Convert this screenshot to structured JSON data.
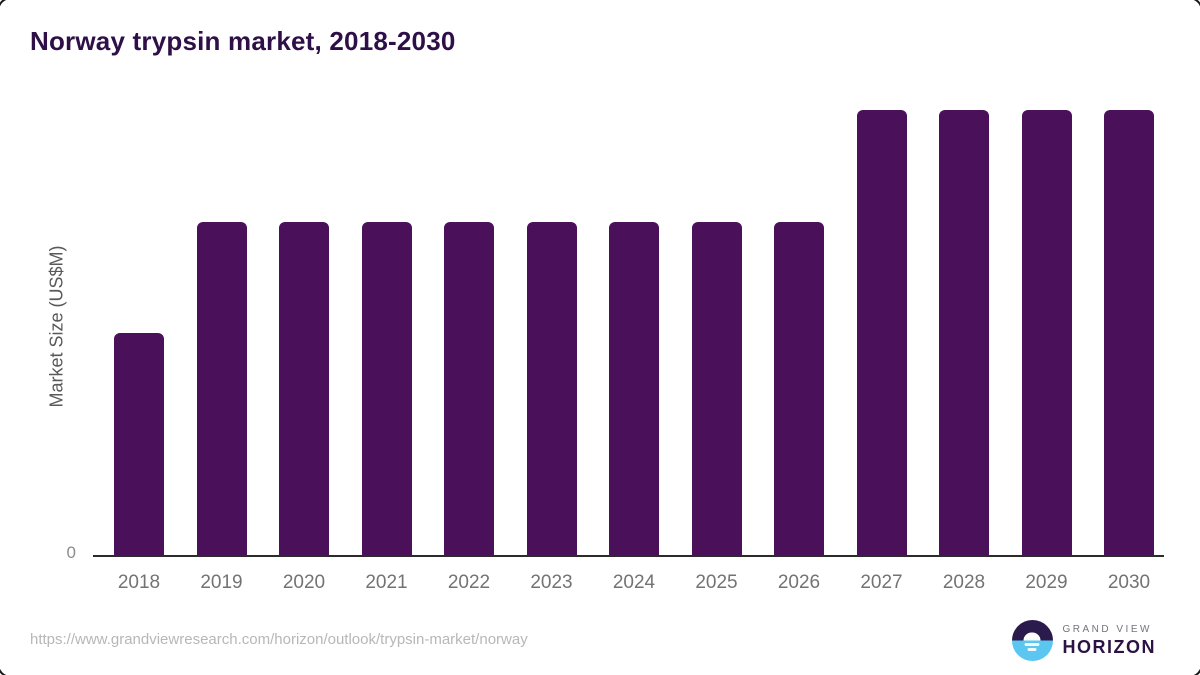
{
  "page": {
    "title": "Norway trypsin market, 2018-2030",
    "source_url": "https://www.grandviewresearch.com/horizon/outlook/trypsin-market/norway"
  },
  "logo": {
    "line1": "GRAND VIEW",
    "line2": "HORIZON",
    "mark_icon": "sunrise-horizon-icon"
  },
  "colors": {
    "bar": "#4a115a",
    "title": "#2e0f47",
    "axis_line": "#2b2b2b",
    "tick_label": "#737373",
    "y_axis_title": "#595959",
    "url_text": "#b7b7b7",
    "logo_dark_purple": "#2b1b4d",
    "logo_light_blue": "#5bc6f0"
  },
  "chart_data": {
    "type": "bar",
    "title": "Norway trypsin market, 2018-2030",
    "xlabel": "",
    "ylabel": "Market Size (US$M)",
    "categories": [
      "2018",
      "2019",
      "2020",
      "2021",
      "2022",
      "2023",
      "2024",
      "2025",
      "2026",
      "2027",
      "2028",
      "2029",
      "2030"
    ],
    "values": [
      0.5,
      0.75,
      0.75,
      0.75,
      0.75,
      0.75,
      0.75,
      0.75,
      0.75,
      1.0,
      1.0,
      1.0,
      1.0
    ],
    "value_units": "relative share of tallest bar (numeric y-axis values not shown)",
    "y_ticks": [
      "0"
    ],
    "ylim": [
      0,
      1
    ],
    "grid": false,
    "legend": false,
    "bar_color": "#4a115a"
  }
}
